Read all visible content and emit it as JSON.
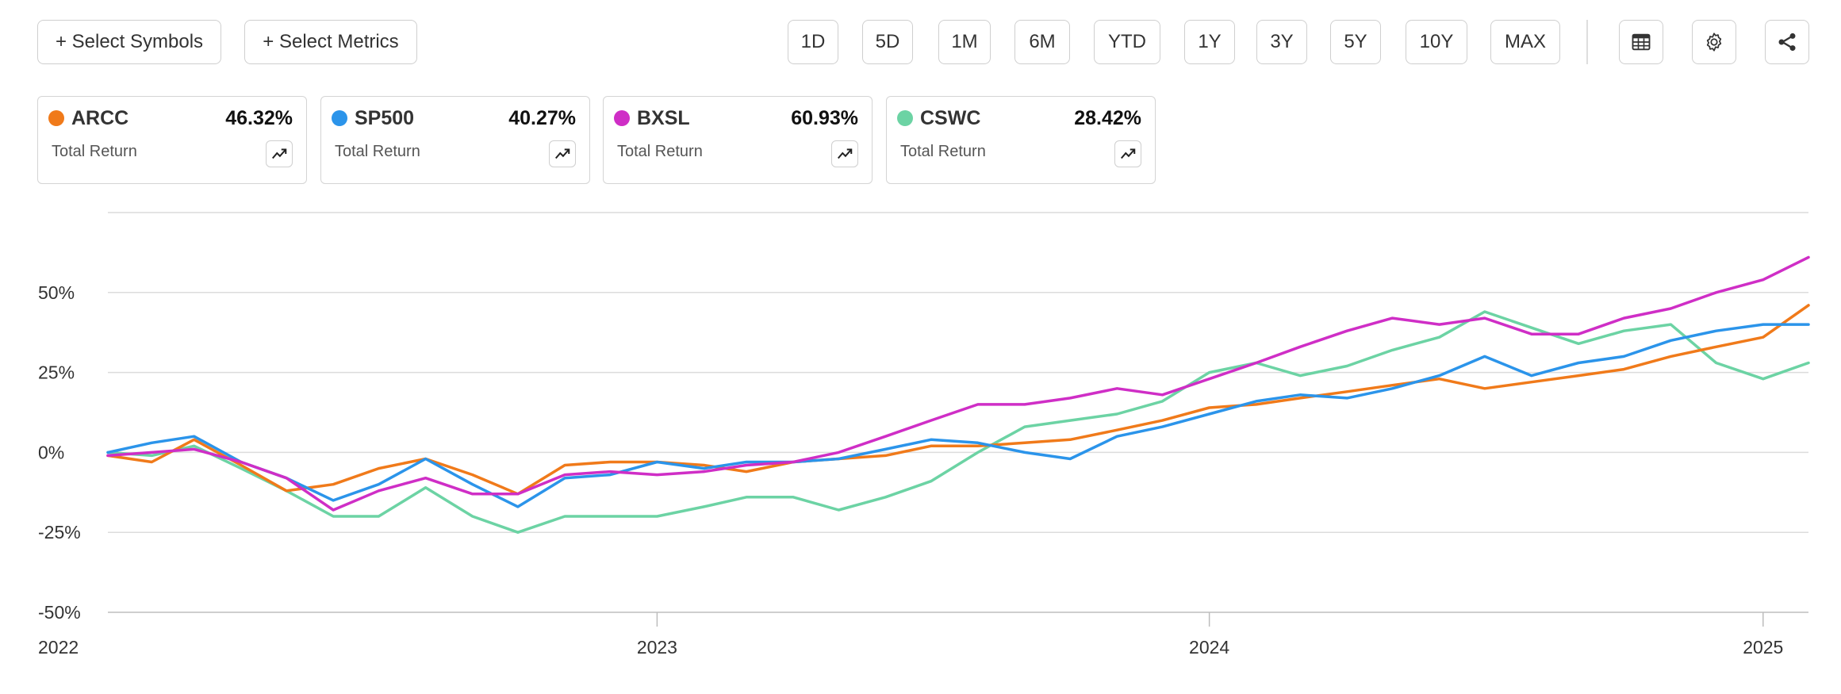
{
  "toolbar": {
    "select_symbols": "+ Select Symbols",
    "select_metrics": "+ Select Metrics",
    "ranges": [
      "1D",
      "5D",
      "1M",
      "6M",
      "YTD",
      "1Y",
      "3Y",
      "5Y",
      "10Y",
      "MAX"
    ],
    "icons": [
      "table-icon",
      "gear-icon",
      "share-icon"
    ]
  },
  "legend": [
    {
      "symbol": "ARCC",
      "value": "46.32%",
      "metric": "Total Return",
      "color": "#F07A1A"
    },
    {
      "symbol": "SP500",
      "value": "40.27%",
      "metric": "Total Return",
      "color": "#2B94EA"
    },
    {
      "symbol": "BXSL",
      "value": "60.93%",
      "metric": "Total Return",
      "color": "#CF2EC6"
    },
    {
      "symbol": "CSWC",
      "value": "28.42%",
      "metric": "Total Return",
      "color": "#6CD3A4"
    }
  ],
  "chart_data": {
    "type": "line",
    "title": "",
    "xlabel": "",
    "ylabel": "",
    "x": [
      "2022-01-03",
      "2022-02-01",
      "2022-03-01",
      "2022-04-01",
      "2022-05-01",
      "2022-06-01",
      "2022-07-01",
      "2022-08-01",
      "2022-09-01",
      "2022-10-01",
      "2022-11-01",
      "2022-12-01",
      "2023-01-01",
      "2023-02-01",
      "2023-03-01",
      "2023-04-01",
      "2023-05-01",
      "2023-06-01",
      "2023-07-01",
      "2023-08-01",
      "2023-09-01",
      "2023-10-01",
      "2023-11-01",
      "2023-12-01",
      "2024-01-01",
      "2024-02-01",
      "2024-03-01",
      "2024-04-01",
      "2024-05-01",
      "2024-06-01",
      "2024-07-01",
      "2024-08-01",
      "2024-09-01",
      "2024-10-01",
      "2024-11-01",
      "2024-12-01",
      "2025-01-01",
      "2025-01-31"
    ],
    "series": [
      {
        "name": "ARCC",
        "color": "#F07A1A",
        "values": [
          -1,
          -3,
          4,
          -4,
          -12,
          -10,
          -5,
          -2,
          -7,
          -13,
          -4,
          -3,
          -3,
          -4,
          -6,
          -3,
          -2,
          -1,
          2,
          2,
          3,
          4,
          7,
          10,
          14,
          15,
          17,
          19,
          21,
          23,
          20,
          22,
          24,
          26,
          30,
          33,
          36,
          46
        ]
      },
      {
        "name": "SP500",
        "color": "#2B94EA",
        "values": [
          0,
          3,
          5,
          -3,
          -8,
          -15,
          -10,
          -2,
          -10,
          -17,
          -8,
          -7,
          -3,
          -5,
          -3,
          -3,
          -2,
          1,
          4,
          3,
          0,
          -2,
          5,
          8,
          12,
          16,
          18,
          17,
          20,
          24,
          30,
          24,
          28,
          30,
          35,
          38,
          40,
          40
        ]
      },
      {
        "name": "BXSL",
        "color": "#CF2EC6",
        "values": [
          -1,
          0,
          1,
          -3,
          -8,
          -18,
          -12,
          -8,
          -13,
          -13,
          -7,
          -6,
          -7,
          -6,
          -4,
          -3,
          0,
          5,
          10,
          15,
          15,
          17,
          20,
          18,
          23,
          28,
          33,
          38,
          42,
          40,
          42,
          37,
          37,
          42,
          45,
          50,
          54,
          61
        ]
      },
      {
        "name": "CSWC",
        "color": "#6CD3A4",
        "values": [
          0,
          -1,
          2,
          -5,
          -12,
          -20,
          -20,
          -11,
          -20,
          -25,
          -20,
          -20,
          -20,
          -17,
          -14,
          -14,
          -18,
          -14,
          -9,
          0,
          8,
          10,
          12,
          16,
          25,
          28,
          24,
          27,
          32,
          36,
          44,
          39,
          34,
          38,
          40,
          28,
          23,
          28
        ]
      }
    ],
    "x_ticks": [
      "2022",
      "2023",
      "2024",
      "2025"
    ],
    "y_ticks": [
      "50%",
      "25%",
      "0%",
      "-25%",
      "-50%"
    ],
    "ylim": [
      -50,
      75
    ],
    "grid": true
  }
}
